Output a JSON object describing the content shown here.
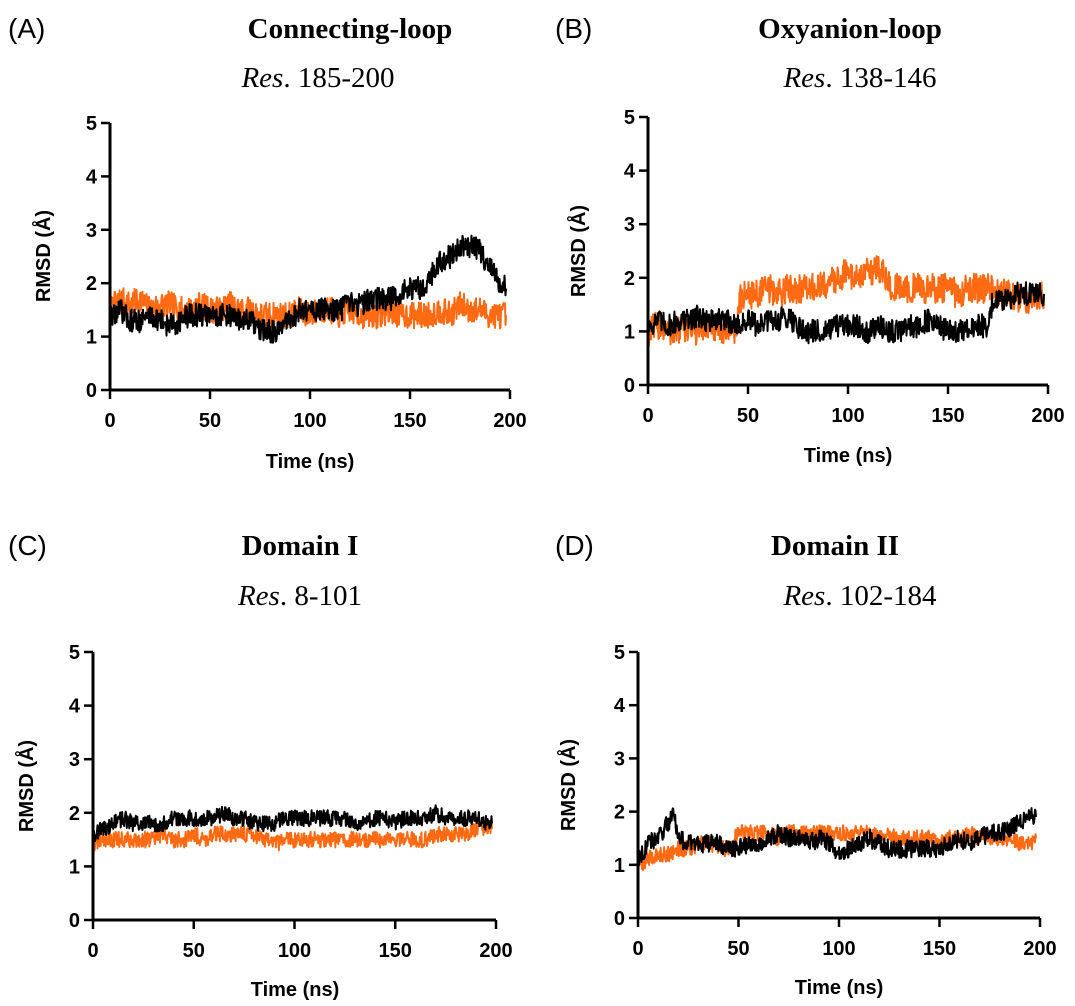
{
  "chart_data": [
    {
      "panel": "(A)",
      "type": "line",
      "title": "Connecting-loop",
      "subtitle_italic": "Res",
      "subtitle_rest": ". 185-200",
      "xlabel": "Time (ns)",
      "ylabel": "RMSD (Å)",
      "xlim": [
        0,
        200
      ],
      "ylim": [
        0,
        5
      ],
      "xticks": [
        0,
        50,
        100,
        150,
        200
      ],
      "yticks": [
        0,
        1,
        2,
        3,
        4,
        5
      ],
      "grid": false,
      "series": [
        {
          "color": "#ff6a13",
          "x": [
            0,
            5,
            10,
            15,
            20,
            25,
            30,
            35,
            40,
            45,
            50,
            55,
            60,
            65,
            70,
            75,
            80,
            85,
            90,
            95,
            100,
            105,
            110,
            115,
            120,
            125,
            130,
            135,
            140,
            145,
            150,
            155,
            160,
            165,
            170,
            175,
            180,
            185,
            190,
            195,
            198
          ],
          "y": [
            1.5,
            1.7,
            1.6,
            1.7,
            1.5,
            1.6,
            1.6,
            1.5,
            1.5,
            1.6,
            1.5,
            1.5,
            1.6,
            1.5,
            1.5,
            1.4,
            1.4,
            1.4,
            1.4,
            1.5,
            1.4,
            1.5,
            1.5,
            1.4,
            1.5,
            1.4,
            1.4,
            1.4,
            1.5,
            1.4,
            1.4,
            1.4,
            1.4,
            1.5,
            1.4,
            1.6,
            1.5,
            1.5,
            1.4,
            1.4,
            1.4
          ],
          "noise": 0.25
        },
        {
          "color": "#000000",
          "x": [
            0,
            5,
            10,
            15,
            20,
            25,
            30,
            35,
            40,
            45,
            50,
            55,
            60,
            65,
            70,
            75,
            80,
            85,
            90,
            95,
            100,
            105,
            110,
            115,
            120,
            125,
            130,
            135,
            140,
            145,
            150,
            155,
            160,
            165,
            170,
            175,
            180,
            185,
            190,
            195,
            198
          ],
          "y": [
            1.4,
            1.5,
            1.3,
            1.3,
            1.4,
            1.3,
            1.2,
            1.3,
            1.4,
            1.4,
            1.4,
            1.4,
            1.4,
            1.3,
            1.3,
            1.1,
            1.1,
            1.1,
            1.3,
            1.5,
            1.5,
            1.5,
            1.5,
            1.5,
            1.6,
            1.6,
            1.7,
            1.7,
            1.7,
            1.8,
            1.9,
            1.9,
            2.1,
            2.4,
            2.5,
            2.7,
            2.7,
            2.6,
            2.3,
            2.0,
            1.9
          ],
          "noise": 0.22
        }
      ]
    },
    {
      "panel": "(B)",
      "type": "line",
      "title": "Oxyanion-loop",
      "subtitle_italic": "Res",
      "subtitle_rest": ". 138-146",
      "xlabel": "Time (ns)",
      "ylabel": "RMSD (Å)",
      "xlim": [
        0,
        200
      ],
      "ylim": [
        0,
        5
      ],
      "xticks": [
        0,
        50,
        100,
        150,
        200
      ],
      "yticks": [
        0,
        1,
        2,
        3,
        4,
        5
      ],
      "grid": false,
      "series": [
        {
          "color": "#ff6a13",
          "x": [
            0,
            5,
            10,
            15,
            20,
            25,
            30,
            35,
            40,
            44,
            46,
            50,
            55,
            60,
            65,
            70,
            75,
            80,
            85,
            90,
            95,
            100,
            105,
            110,
            115,
            120,
            125,
            130,
            135,
            140,
            145,
            150,
            155,
            160,
            165,
            170,
            175,
            180,
            185,
            190,
            195,
            198
          ],
          "y": [
            1.0,
            1.1,
            1.0,
            1.0,
            1.1,
            1.0,
            1.1,
            1.0,
            1.1,
            1.0,
            1.6,
            1.7,
            1.7,
            1.8,
            1.7,
            1.8,
            1.8,
            1.8,
            1.8,
            1.9,
            2.0,
            2.1,
            2.0,
            2.1,
            2.2,
            1.9,
            1.8,
            1.8,
            1.8,
            1.8,
            1.8,
            1.8,
            1.7,
            1.8,
            1.8,
            1.8,
            1.7,
            1.7,
            1.6,
            1.6,
            1.7,
            1.7
          ],
          "noise": 0.28
        },
        {
          "color": "#000000",
          "x": [
            0,
            5,
            10,
            15,
            20,
            25,
            30,
            35,
            40,
            45,
            50,
            55,
            60,
            65,
            70,
            75,
            80,
            85,
            90,
            95,
            100,
            105,
            110,
            115,
            120,
            125,
            130,
            135,
            140,
            145,
            150,
            155,
            160,
            165,
            170,
            172,
            175,
            180,
            185,
            190,
            195,
            198
          ],
          "y": [
            1.1,
            1.2,
            1.1,
            1.2,
            1.2,
            1.3,
            1.2,
            1.2,
            1.2,
            1.1,
            1.2,
            1.1,
            1.2,
            1.2,
            1.3,
            1.1,
            1.0,
            1.0,
            1.0,
            1.1,
            1.1,
            1.1,
            1.0,
            1.1,
            1.0,
            1.0,
            1.1,
            1.1,
            1.2,
            1.1,
            1.0,
            1.0,
            1.0,
            1.1,
            1.1,
            1.5,
            1.6,
            1.6,
            1.7,
            1.7,
            1.7,
            1.7
          ],
          "noise": 0.22
        }
      ]
    },
    {
      "panel": "(C)",
      "type": "line",
      "title": "Domain I",
      "subtitle_italic": "Res",
      "subtitle_rest": ". 8-101",
      "xlabel": "Time (ns)",
      "ylabel": "RMSD (Å)",
      "xlim": [
        0,
        200
      ],
      "ylim": [
        0,
        5
      ],
      "xticks": [
        0,
        50,
        100,
        150,
        200
      ],
      "yticks": [
        0,
        1,
        2,
        3,
        4,
        5
      ],
      "grid": false,
      "series": [
        {
          "color": "#ff6a13",
          "x": [
            0,
            5,
            10,
            15,
            20,
            25,
            30,
            35,
            40,
            45,
            50,
            55,
            60,
            65,
            70,
            75,
            80,
            85,
            90,
            95,
            100,
            105,
            110,
            115,
            120,
            125,
            130,
            135,
            140,
            145,
            150,
            155,
            160,
            165,
            170,
            175,
            180,
            185,
            190,
            195,
            198
          ],
          "y": [
            1.4,
            1.5,
            1.5,
            1.5,
            1.5,
            1.5,
            1.5,
            1.6,
            1.5,
            1.5,
            1.6,
            1.5,
            1.6,
            1.6,
            1.6,
            1.6,
            1.6,
            1.5,
            1.4,
            1.5,
            1.5,
            1.5,
            1.5,
            1.5,
            1.5,
            1.5,
            1.5,
            1.5,
            1.5,
            1.5,
            1.5,
            1.5,
            1.5,
            1.5,
            1.6,
            1.6,
            1.6,
            1.6,
            1.7,
            1.7,
            1.7
          ],
          "noise": 0.15
        },
        {
          "color": "#000000",
          "x": [
            0,
            5,
            10,
            15,
            20,
            25,
            30,
            35,
            40,
            45,
            50,
            55,
            60,
            65,
            70,
            75,
            80,
            85,
            90,
            95,
            100,
            105,
            110,
            115,
            120,
            125,
            130,
            135,
            140,
            145,
            150,
            155,
            160,
            165,
            170,
            175,
            180,
            185,
            190,
            195,
            198
          ],
          "y": [
            1.6,
            1.7,
            1.8,
            1.9,
            1.8,
            1.8,
            1.8,
            1.8,
            1.9,
            1.9,
            1.9,
            1.9,
            1.9,
            2.0,
            1.9,
            1.9,
            1.8,
            1.8,
            1.8,
            1.9,
            1.9,
            1.9,
            1.9,
            1.9,
            1.9,
            1.9,
            1.8,
            1.8,
            1.9,
            1.9,
            1.8,
            1.9,
            1.9,
            1.9,
            2.0,
            1.9,
            1.9,
            1.9,
            1.9,
            1.8,
            1.8
          ],
          "noise": 0.15
        }
      ]
    },
    {
      "panel": "(D)",
      "type": "line",
      "title": "Domain II",
      "subtitle_italic": "Res",
      "subtitle_rest": ". 102-184",
      "xlabel": "Time (ns)",
      "ylabel": "RMSD (Å)",
      "xlim": [
        0,
        200
      ],
      "ylim": [
        0,
        5
      ],
      "xticks": [
        0,
        50,
        100,
        150,
        200
      ],
      "yticks": [
        0,
        1,
        2,
        3,
        4,
        5
      ],
      "grid": false,
      "series": [
        {
          "color": "#ff6a13",
          "x": [
            0,
            5,
            10,
            15,
            20,
            25,
            30,
            35,
            40,
            45,
            50,
            55,
            60,
            65,
            70,
            75,
            80,
            85,
            90,
            95,
            100,
            105,
            110,
            115,
            120,
            125,
            130,
            135,
            140,
            145,
            150,
            155,
            160,
            165,
            170,
            175,
            180,
            185,
            190,
            195,
            198
          ],
          "y": [
            1.0,
            1.1,
            1.2,
            1.2,
            1.3,
            1.3,
            1.4,
            1.4,
            1.3,
            1.3,
            1.6,
            1.6,
            1.6,
            1.6,
            1.5,
            1.6,
            1.6,
            1.6,
            1.6,
            1.6,
            1.6,
            1.6,
            1.6,
            1.6,
            1.5,
            1.6,
            1.5,
            1.5,
            1.5,
            1.5,
            1.4,
            1.5,
            1.5,
            1.6,
            1.5,
            1.5,
            1.5,
            1.5,
            1.4,
            1.4,
            1.5
          ],
          "noise": 0.15
        },
        {
          "color": "#000000",
          "x": [
            0,
            5,
            10,
            15,
            18,
            20,
            25,
            30,
            35,
            40,
            45,
            50,
            55,
            60,
            65,
            70,
            75,
            80,
            85,
            90,
            95,
            100,
            105,
            110,
            115,
            120,
            125,
            130,
            135,
            140,
            145,
            150,
            155,
            160,
            165,
            170,
            175,
            180,
            185,
            190,
            195,
            198
          ],
          "y": [
            1.1,
            1.4,
            1.5,
            1.8,
            2.0,
            1.5,
            1.4,
            1.4,
            1.4,
            1.4,
            1.3,
            1.3,
            1.4,
            1.4,
            1.5,
            1.6,
            1.5,
            1.5,
            1.4,
            1.5,
            1.4,
            1.2,
            1.3,
            1.4,
            1.5,
            1.4,
            1.3,
            1.3,
            1.3,
            1.3,
            1.3,
            1.3,
            1.4,
            1.5,
            1.4,
            1.5,
            1.6,
            1.6,
            1.7,
            1.8,
            1.9,
            1.9
          ],
          "noise": 0.17
        }
      ]
    }
  ]
}
